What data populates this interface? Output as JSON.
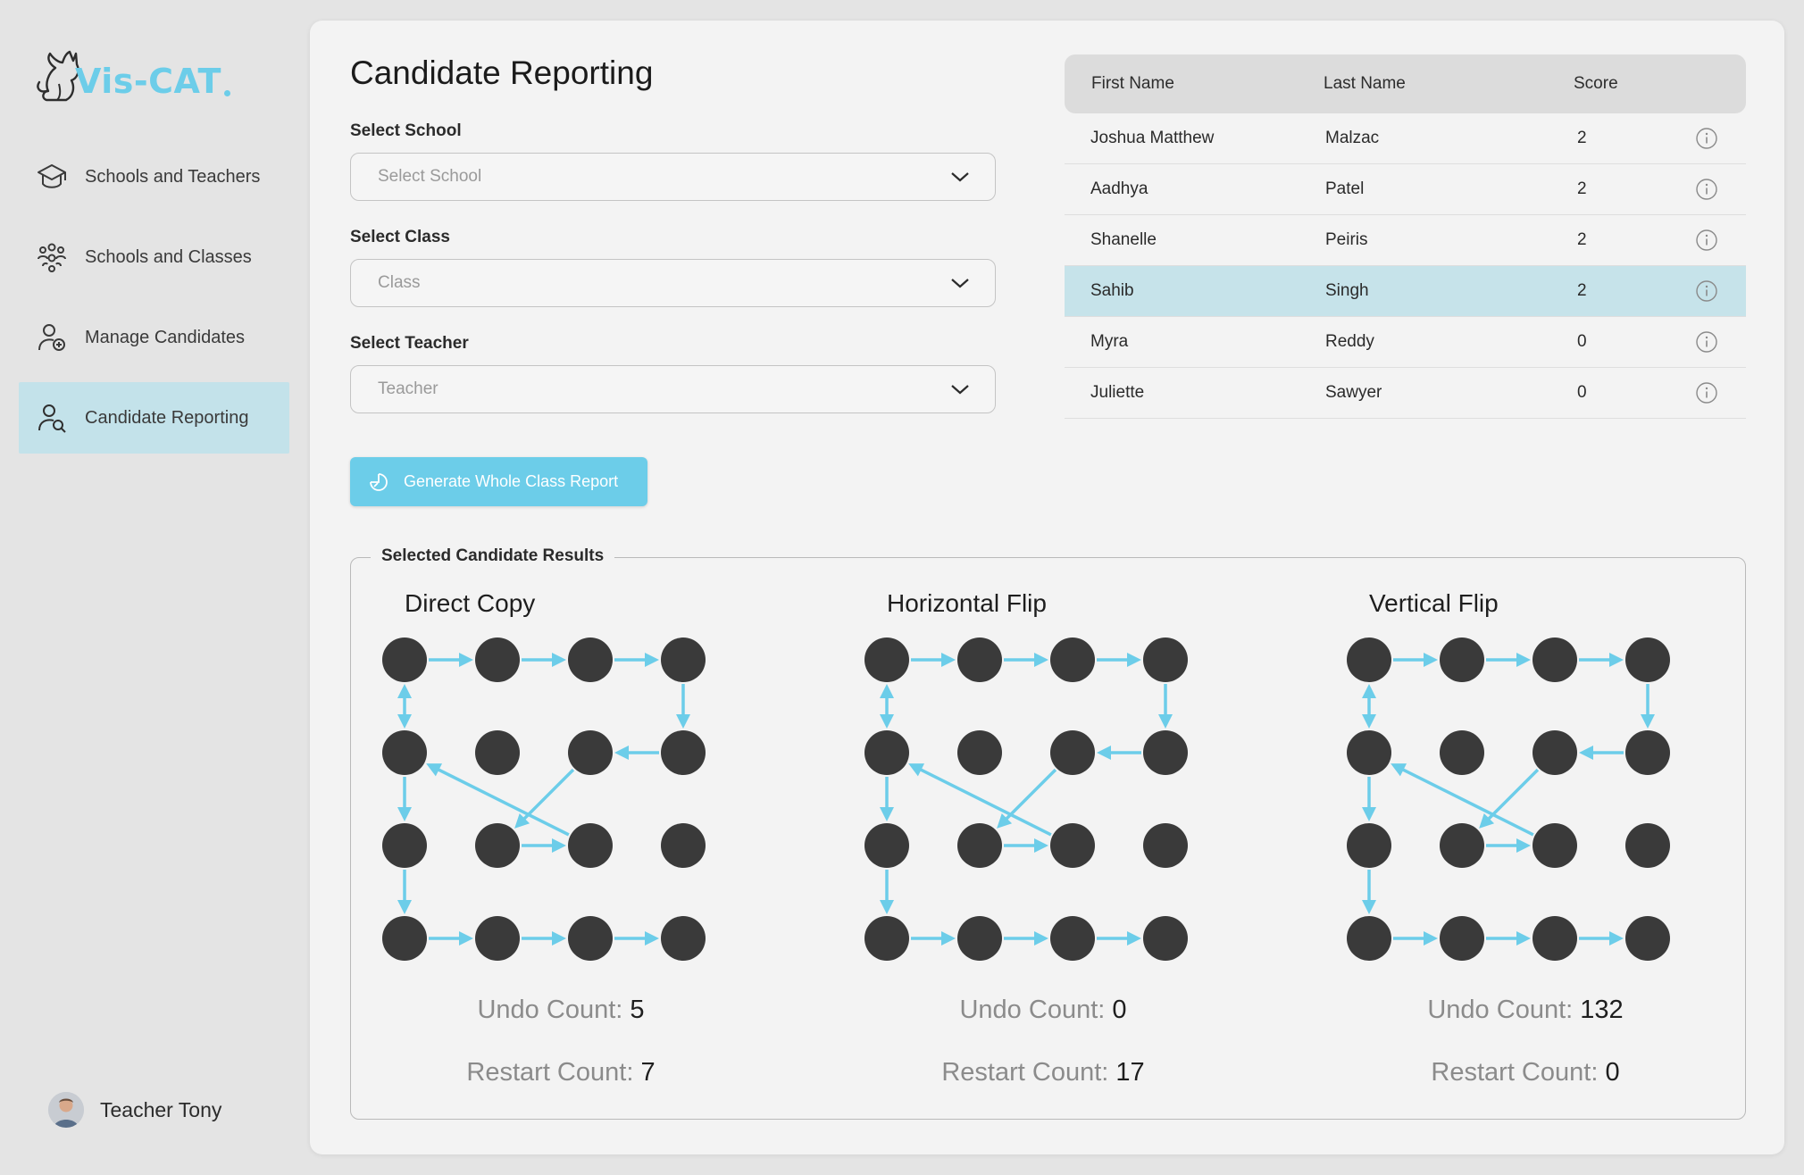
{
  "app": {
    "logo_text": "Vis-CAT",
    "accent_color": "#6ccde9",
    "selected_color": "#c3e2ea"
  },
  "sidebar": {
    "items": [
      {
        "label": "Schools and Teachers",
        "icon": "graduation-cap-icon",
        "active": false
      },
      {
        "label": "Schools and Classes",
        "icon": "group-icon",
        "active": false
      },
      {
        "label": "Manage Candidates",
        "icon": "user-add-icon",
        "active": false
      },
      {
        "label": "Candidate Reporting",
        "icon": "user-search-icon",
        "active": true
      }
    ],
    "user": {
      "name": "Teacher Tony",
      "icon": "avatar"
    }
  },
  "main": {
    "title": "Candidate Reporting",
    "filters": [
      {
        "label": "Select School",
        "placeholder": "Select School"
      },
      {
        "label": "Select Class",
        "placeholder": "Class"
      },
      {
        "label": "Select Teacher",
        "placeholder": "Teacher"
      }
    ],
    "generate_button": "Generate Whole Class Report"
  },
  "table": {
    "headers": {
      "first": "First Name",
      "last": "Last Name",
      "score": "Score"
    },
    "rows": [
      {
        "first": "Joshua Matthew",
        "last": "Malzac",
        "score": "2",
        "selected": false
      },
      {
        "first": "Aadhya",
        "last": "Patel",
        "score": "2",
        "selected": false
      },
      {
        "first": "Shanelle",
        "last": "Peiris",
        "score": "2",
        "selected": false
      },
      {
        "first": "Sahib",
        "last": "Singh",
        "score": "2",
        "selected": true
      },
      {
        "first": "Myra",
        "last": "Reddy",
        "score": "0",
        "selected": false
      },
      {
        "first": "Juliette",
        "last": "Sawyer",
        "score": "0",
        "selected": false
      }
    ]
  },
  "results": {
    "legend": "Selected Candidate Results",
    "undo_label": "Undo Count:",
    "restart_label": "Restart Count:",
    "tasks": [
      {
        "title": "Direct Copy",
        "undo": "5",
        "restart": "7"
      },
      {
        "title": "Horizontal Flip",
        "undo": "0",
        "restart": "17"
      },
      {
        "title": "Vertical Flip",
        "undo": "132",
        "restart": "0"
      }
    ],
    "grid": {
      "size": 4,
      "dot_color": "#3a3a3a",
      "arrow_color": "#6ccde9",
      "path_arrows": [
        [
          [
            0,
            0
          ],
          [
            1,
            0
          ]
        ],
        [
          [
            1,
            0
          ],
          [
            2,
            0
          ]
        ],
        [
          [
            2,
            0
          ],
          [
            3,
            0
          ]
        ],
        [
          [
            3,
            0
          ],
          [
            3,
            1
          ]
        ],
        [
          [
            3,
            1
          ],
          [
            2,
            1
          ]
        ],
        [
          [
            2,
            1
          ],
          [
            1,
            2
          ]
        ],
        [
          [
            1,
            2
          ],
          [
            2,
            2
          ]
        ],
        [
          [
            2,
            2
          ],
          [
            0,
            1
          ]
        ],
        [
          [
            0,
            1
          ],
          [
            0,
            2
          ]
        ],
        [
          [
            0,
            2
          ],
          [
            0,
            3
          ]
        ],
        [
          [
            0,
            3
          ],
          [
            1,
            3
          ]
        ],
        [
          [
            1,
            3
          ],
          [
            2,
            3
          ]
        ],
        [
          [
            2,
            3
          ],
          [
            3,
            3
          ]
        ]
      ],
      "double_arrows": [
        [
          [
            0,
            0
          ],
          [
            0,
            1
          ]
        ]
      ]
    }
  }
}
